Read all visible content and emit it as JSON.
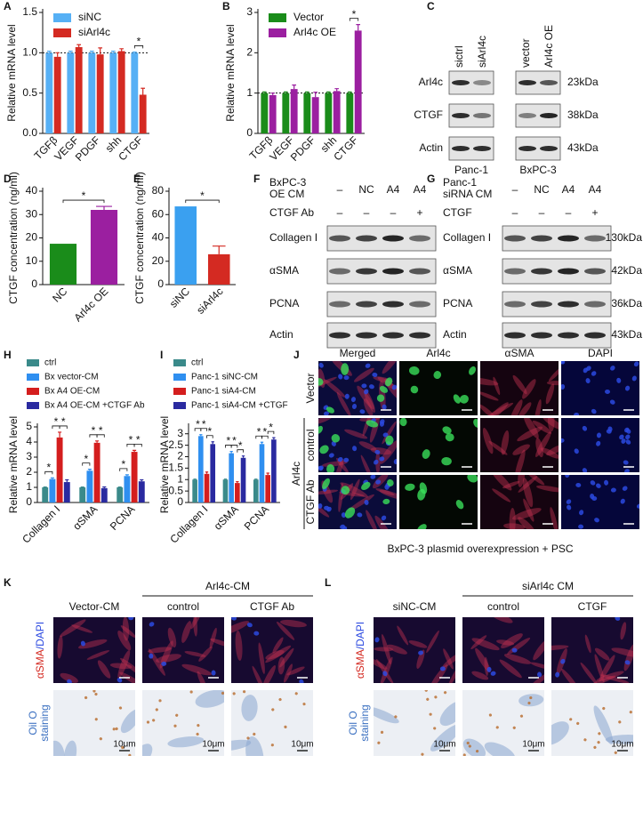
{
  "chart_data": [
    {
      "panel": "A",
      "type": "bar",
      "ylabel": "Relative mRNA level",
      "categories": [
        "TGFβ",
        "VEGF",
        "PDGF",
        "shh",
        "CTGF"
      ],
      "series": [
        {
          "name": "siNC",
          "color": "#56b0f5",
          "values": [
            1,
            1,
            1,
            1,
            1
          ],
          "errors": [
            0.02,
            0.02,
            0.02,
            0.02,
            0.01
          ]
        },
        {
          "name": "siArl4c",
          "color": "#d42a22",
          "values": [
            0.95,
            1.07,
            0.98,
            1.02,
            0.48
          ],
          "errors": [
            0.05,
            0.03,
            0.08,
            0.03,
            0.08
          ]
        }
      ],
      "ylim": [
        0,
        1.5
      ],
      "yticks": [
        {
          "value": 0,
          "label": "0.0"
        },
        0.5,
        {
          "value": 1,
          "label": "1.0"
        },
        1.5
      ],
      "reference_line": 1,
      "legend": "top-left",
      "annotations": [
        "*"
      ]
    },
    {
      "panel": "B",
      "type": "bar",
      "ylabel": "Relative mRNA level",
      "categories": [
        "TGFβ",
        "VEGF",
        "PDGF",
        "shh",
        "CTGF"
      ],
      "series": [
        {
          "name": "Vector",
          "color": "#1a8c1a",
          "values": [
            1,
            1,
            1,
            1,
            1
          ],
          "errors": [
            0.03,
            0.03,
            0.03,
            0.03,
            0.03
          ]
        },
        {
          "name": "Arl4c OE",
          "color": "#9b1fa0",
          "values": [
            0.95,
            1.1,
            0.9,
            1.05,
            2.55
          ],
          "errors": [
            0.05,
            0.1,
            0.12,
            0.06,
            0.15
          ]
        }
      ],
      "ylim": [
        0,
        3
      ],
      "yticks": [
        0,
        1,
        2,
        3
      ],
      "reference_line": 1,
      "legend": "top-left",
      "annotations": [
        "*"
      ]
    },
    {
      "panel": "D",
      "type": "bar",
      "ylabel": "CTGF concentration (ng/ml)",
      "categories": [
        "NC",
        "Arl4c OE"
      ],
      "values": [
        17.5,
        32
      ],
      "errors": [
        null,
        1.5
      ],
      "colors": [
        "#1a8c1a",
        "#9b1fa0"
      ],
      "ylim": [
        0,
        40
      ],
      "yticks": [
        0,
        10,
        20,
        30,
        40
      ],
      "annotations": [
        "*"
      ]
    },
    {
      "panel": "E",
      "type": "bar",
      "ylabel": "CTGF concentration (ng/ml)",
      "categories": [
        "siNC",
        "siArl4c"
      ],
      "values": [
        67,
        26
      ],
      "errors": [
        null,
        7
      ],
      "colors": [
        "#3aa0f0",
        "#d42a22"
      ],
      "ylim": [
        0,
        80
      ],
      "yticks": [
        0,
        20,
        40,
        60,
        80
      ],
      "annotations": [
        "*"
      ]
    },
    {
      "panel": "H",
      "type": "bar",
      "ylabel": "Relative mRNA level",
      "categories": [
        "Collagen I",
        "αSMA",
        "PCNA"
      ],
      "series": [
        {
          "name": "ctrl",
          "color": "#3a8a8a",
          "values": [
            1,
            1,
            1
          ],
          "errors": [
            0.02,
            0.02,
            0.02
          ]
        },
        {
          "name": "Bx vector-CM",
          "color": "#2f8ff0",
          "values": [
            1.55,
            2.1,
            1.75
          ],
          "errors": [
            0.08,
            0.1,
            0.08
          ]
        },
        {
          "name": "Bx A4 OE-CM",
          "color": "#d41e1e",
          "values": [
            4.3,
            3.95,
            3.35
          ],
          "errors": [
            0.35,
            0.12,
            0.1
          ]
        },
        {
          "name": "Bx A4 OE-CM +CTGF Ab",
          "color": "#2a2aa0",
          "values": [
            1.35,
            0.95,
            1.4
          ],
          "errors": [
            0.15,
            0.08,
            0.1
          ]
        }
      ],
      "ylim": [
        0,
        5
      ],
      "yticks": [
        0,
        1,
        2,
        3,
        4,
        5
      ],
      "legend": "above",
      "annotations": [
        "*",
        "*",
        "*",
        "*",
        "*",
        "*",
        "*",
        "*",
        "*"
      ]
    },
    {
      "panel": "I",
      "type": "bar",
      "ylabel": "Relative mRNA level",
      "categories": [
        "Collagen I",
        "αSMA",
        "PCNA"
      ],
      "series": [
        {
          "name": "ctrl",
          "color": "#3a8a8a",
          "values": [
            1,
            1,
            1
          ],
          "errors": [
            0.02,
            0.02,
            0.02
          ]
        },
        {
          "name": "Panc-1 siNC-CM",
          "color": "#2f8ff0",
          "values": [
            2.9,
            2.15,
            2.55
          ],
          "errors": [
            0.06,
            0.08,
            0.08
          ]
        },
        {
          "name": "Panc-1 siA4-CM",
          "color": "#d41e1e",
          "values": [
            1.25,
            0.85,
            1.2
          ],
          "errors": [
            0.08,
            0.06,
            0.08
          ]
        },
        {
          "name": "Panc-1 siA4-CM +CTGF",
          "color": "#2a2aa0",
          "values": [
            2.55,
            1.95,
            2.75
          ],
          "errors": [
            0.1,
            0.08,
            0.08
          ]
        }
      ],
      "ylim": [
        0,
        3.3
      ],
      "yticks": [
        0,
        0.5,
        1,
        1.5,
        2,
        2.5,
        3
      ],
      "legend": "above",
      "annotations": [
        "*",
        "*",
        "*",
        "*",
        "*",
        "*",
        "*",
        "*",
        "*"
      ]
    }
  ],
  "blots": [
    {
      "panel": "C",
      "lanes": [
        "sictrl",
        "siArl4c",
        "vector",
        "Arl4c OE"
      ],
      "rows": [
        "Arl4c",
        "CTGF",
        "Actin"
      ],
      "sizes": [
        "23kDa",
        "38kDa",
        "43kDa"
      ],
      "groups": [
        "Panc-1",
        "BxPC-3"
      ]
    },
    {
      "panel": "F",
      "condition": [
        "BxPC-3",
        "OE CM"
      ],
      "lanes": [
        "–",
        "NC",
        "A4",
        "A4"
      ],
      "treatment": "CTGF Ab",
      "treatment_lanes": [
        "–",
        "–",
        "–",
        "+"
      ],
      "rows": [
        "Collagen I",
        "αSMA",
        "PCNA",
        "Actin"
      ]
    },
    {
      "panel": "G",
      "condition": [
        "Panc-1",
        "siRNA CM"
      ],
      "lanes": [
        "–",
        "NC",
        "A4",
        "A4"
      ],
      "treatment": "CTGF",
      "treatment_lanes": [
        "–",
        "–",
        "–",
        "+"
      ],
      "rows": [
        "Collagen I",
        "αSMA",
        "PCNA",
        "Actin"
      ],
      "sizes": [
        "130kDa",
        "42kDa",
        "36kDa",
        "43kDa"
      ]
    }
  ],
  "microscopy": {
    "panel": "J",
    "columns": [
      "Merged",
      "Arl4c",
      "αSMA",
      "DAPI"
    ],
    "rows": [
      "Vector",
      "control",
      "CTGF Ab"
    ],
    "group": "Arl4c",
    "caption": "BxPC-3 plasmid overexpression + PSC"
  },
  "staining": [
    {
      "panel": "K",
      "group": "Arl4c-CM",
      "columns": [
        "Vector-CM",
        "control",
        "CTGF Ab"
      ],
      "rows": [
        [
          "αSMA",
          "/DAPI"
        ],
        [
          "Oil O",
          "staining"
        ]
      ],
      "scale": "10μm"
    },
    {
      "panel": "L",
      "group": "siArl4c CM",
      "columns": [
        "siNC-CM",
        "control",
        "CTGF"
      ],
      "rows": [
        [
          "αSMA",
          "/DAPI"
        ],
        [
          "Oil O",
          "staining"
        ]
      ],
      "scale": "10μm"
    }
  ]
}
